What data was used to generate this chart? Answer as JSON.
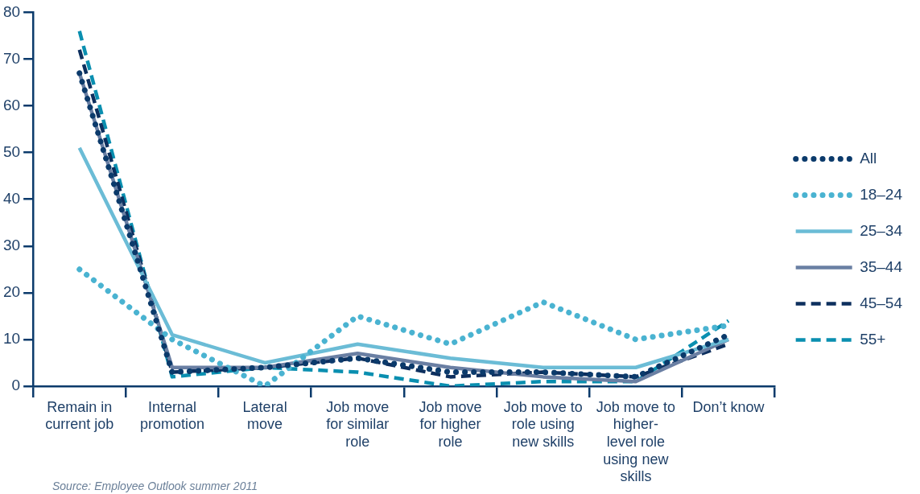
{
  "chart_data": {
    "type": "line",
    "categories": [
      "Remain in current job",
      "Internal promotion",
      "Lateral move",
      "Job move for similar role",
      "Job move for higher role",
      "Job move to role using new skills",
      "Job move to higher-level role using new skills",
      "Don’t know"
    ],
    "series": [
      {
        "name": "All",
        "color": "#0b3a6b",
        "line_style": "dotted",
        "values": [
          67,
          3,
          4,
          6,
          3,
          3,
          2,
          11
        ]
      },
      {
        "name": "18–24",
        "color": "#4ab3d1",
        "line_style": "dotted",
        "values": [
          25,
          10,
          0,
          15,
          9,
          18,
          10,
          13
        ]
      },
      {
        "name": "25–34",
        "color": "#6bbcd6",
        "line_style": "solid",
        "values": [
          51,
          11,
          5,
          9,
          6,
          4,
          4,
          10
        ]
      },
      {
        "name": "35–44",
        "color": "#6a7fa3",
        "line_style": "solid",
        "values": [
          67,
          4,
          4,
          7,
          4,
          2,
          1,
          10
        ]
      },
      {
        "name": "45–54",
        "color": "#0d2f5e",
        "line_style": "dashed",
        "values": [
          72,
          3,
          4,
          6,
          2,
          3,
          2,
          9
        ]
      },
      {
        "name": "55+",
        "color": "#0a8fb0",
        "line_style": "dashed",
        "values": [
          76,
          2,
          4,
          3,
          0,
          1,
          1,
          14
        ]
      }
    ],
    "ylim": [
      0,
      80
    ],
    "yticks": [
      0,
      10,
      20,
      30,
      40,
      50,
      60,
      70,
      80
    ],
    "grid": false,
    "legend": "right",
    "marker": "none",
    "annotations": [
      "Source: Employee Outlook summer 2011"
    ]
  }
}
